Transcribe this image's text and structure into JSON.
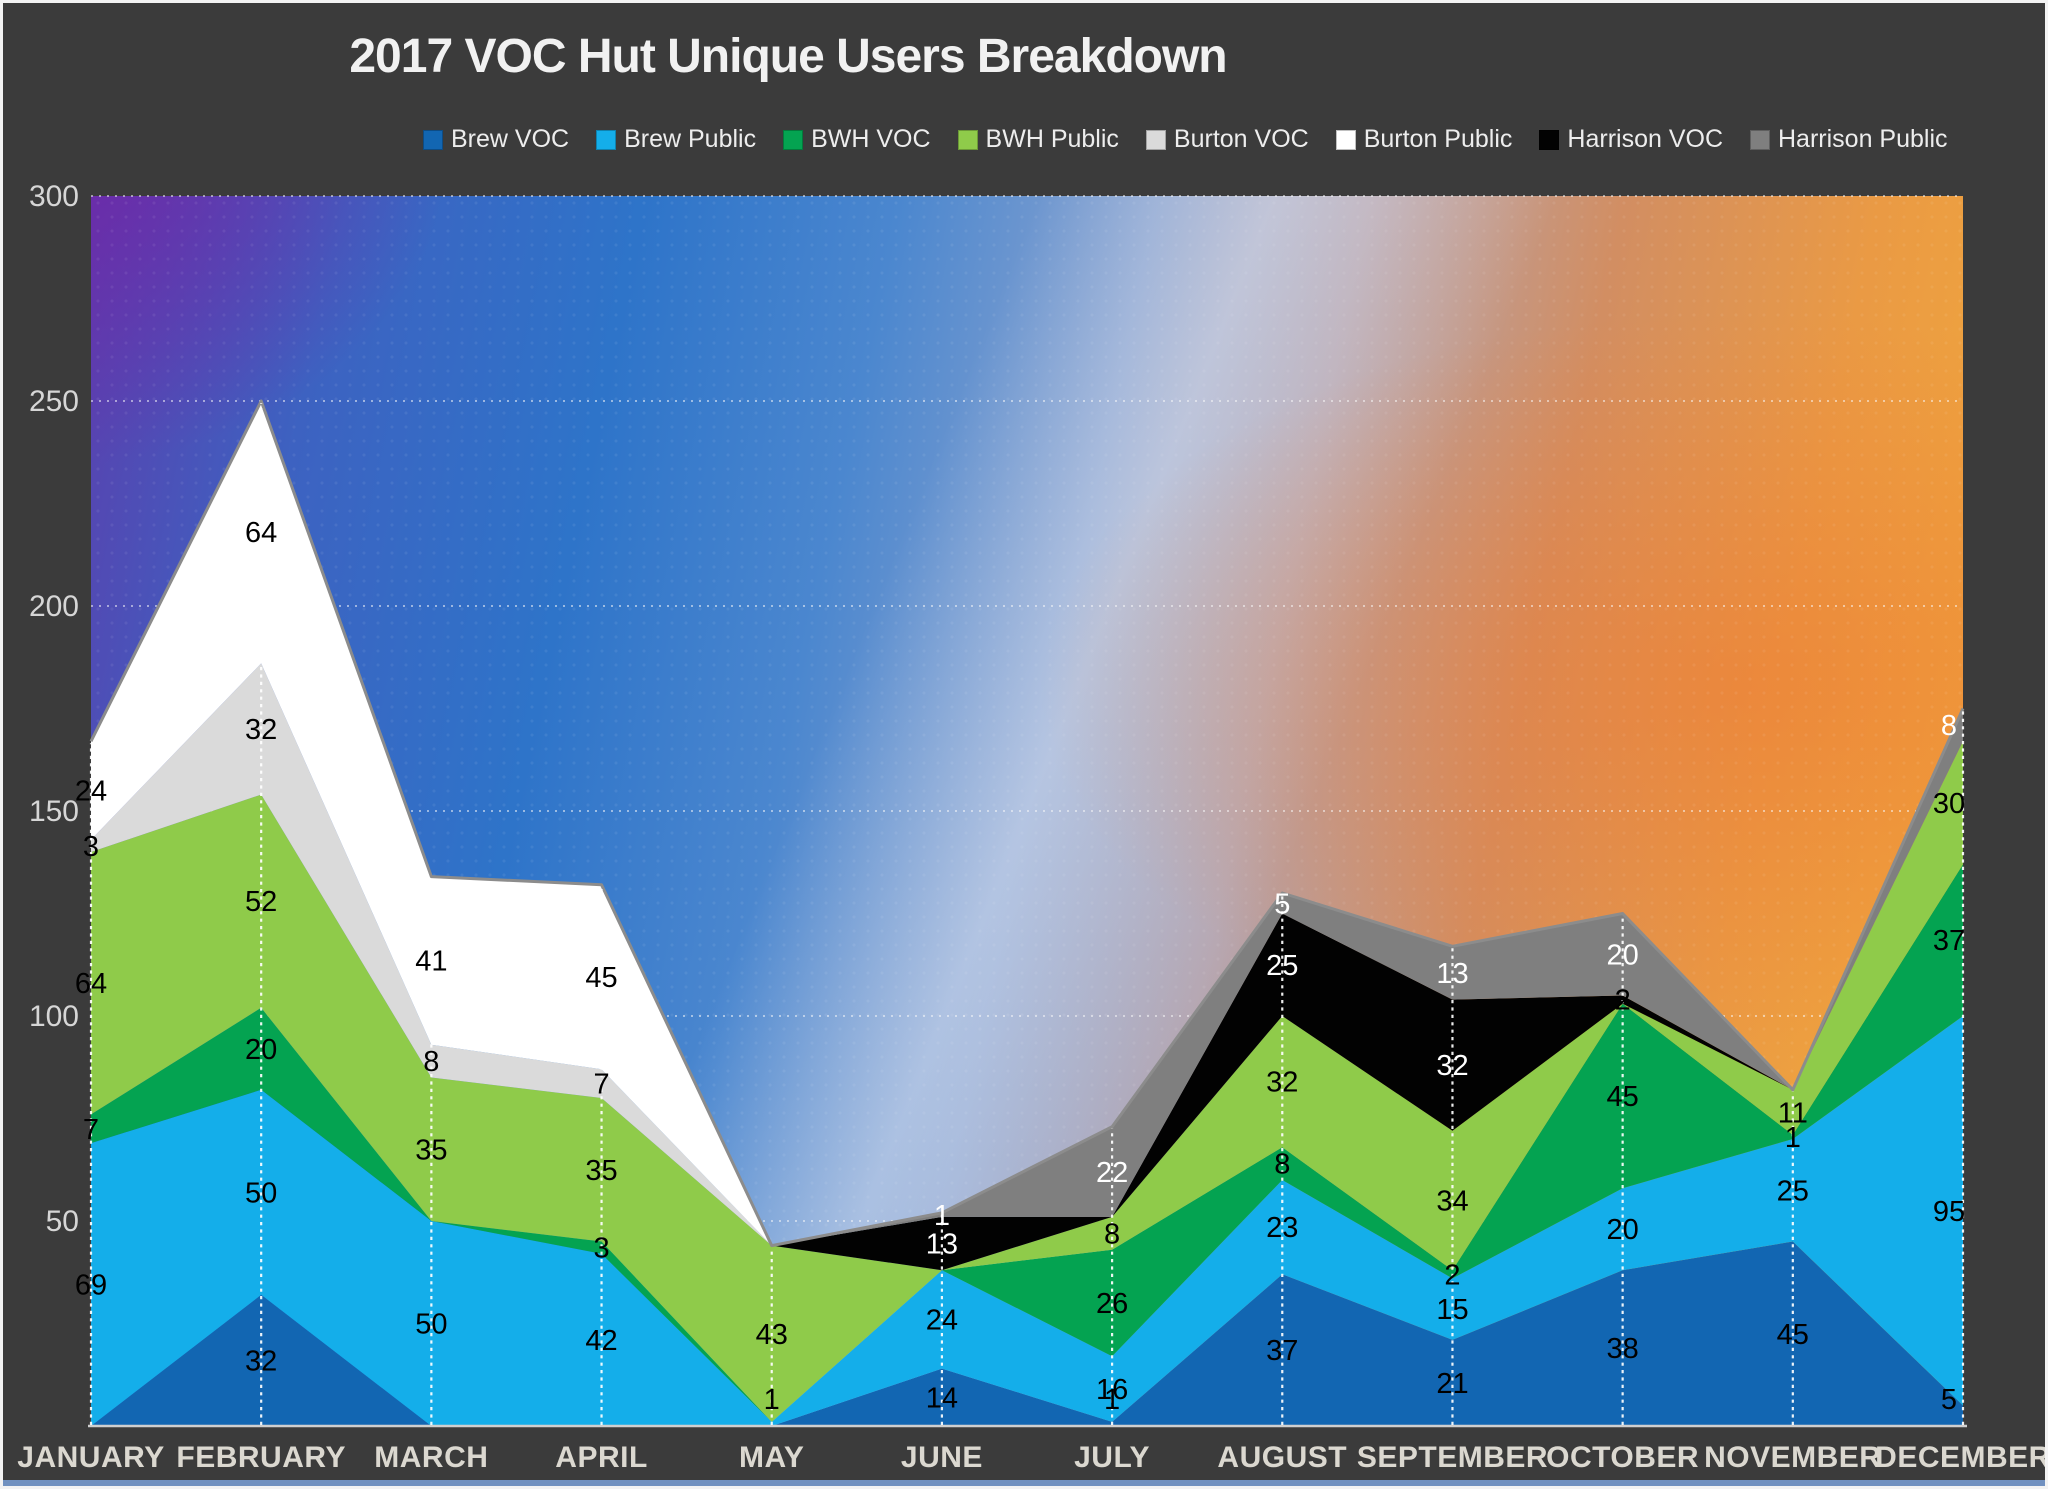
{
  "title": "2017 VOC Hut Unique Users Breakdown",
  "chart_data": {
    "type": "area",
    "stacked": true,
    "title": "2017 VOC Hut Unique Users Breakdown",
    "legend_position": "top",
    "categories": [
      "JANUARY",
      "FEBRUARY",
      "MARCH",
      "APRIL",
      "MAY",
      "JUNE",
      "JULY",
      "AUGUST",
      "SEPTEMBER",
      "OCTOBER",
      "NOVEMBER",
      "DECEMBER"
    ],
    "y_axis": {
      "min": 0,
      "max": 300,
      "tick_step": 50,
      "ticks": [
        300,
        250,
        200,
        150,
        100,
        50
      ],
      "gridlines": "dotted"
    },
    "series": [
      {
        "name": "Brew VOC",
        "color": "#1266B2",
        "label_color": "#000000",
        "values": [
          0,
          32,
          0,
          0,
          0,
          14,
          1,
          37,
          21,
          38,
          45,
          5
        ]
      },
      {
        "name": "Brew Public",
        "color": "#14AEEA",
        "label_color": "#000000",
        "values": [
          69,
          50,
          50,
          42,
          1,
          24,
          16,
          23,
          15,
          20,
          25,
          95
        ]
      },
      {
        "name": "BWH VOC",
        "color": "#04A351",
        "label_color": "#000000",
        "values": [
          7,
          20,
          0,
          3,
          0,
          0,
          26,
          8,
          2,
          45,
          1,
          37
        ]
      },
      {
        "name": "BWH Public",
        "color": "#8FCB4A",
        "label_color": "#000000",
        "values": [
          64,
          52,
          35,
          35,
          43,
          0,
          8,
          32,
          34,
          0,
          11,
          30
        ]
      },
      {
        "name": "Burton VOC",
        "color": "#DADADA",
        "label_color": "#000000",
        "values": [
          3,
          32,
          8,
          7,
          0,
          0,
          0,
          0,
          0,
          0,
          0,
          0
        ]
      },
      {
        "name": "Burton Public",
        "color": "#FFFFFF",
        "label_color": "#000000",
        "values": [
          24,
          64,
          41,
          45,
          0,
          0,
          0,
          0,
          0,
          0,
          0,
          0
        ]
      },
      {
        "name": "Harrison VOC",
        "color": "#020202",
        "label_color": "#FFFFFF",
        "label_color_overrides": {
          "9": "#000000"
        },
        "values": [
          0,
          0,
          0,
          0,
          0,
          13,
          0,
          25,
          32,
          2,
          0,
          0
        ]
      },
      {
        "name": "Harrison Public",
        "color": "#7F7F7F",
        "label_color": "#FFFFFF",
        "values": [
          0,
          0,
          0,
          0,
          0,
          1,
          22,
          5,
          13,
          20,
          0,
          8
        ]
      }
    ],
    "outline_color": "#8C8C8C",
    "gridline_color": "rgba(250,250,250,0.7)",
    "month_leader_line_color": "rgba(255,255,255,0.92)",
    "axis_label_color": "#D6D6D6",
    "month_label_color": "#DBD8D0"
  }
}
